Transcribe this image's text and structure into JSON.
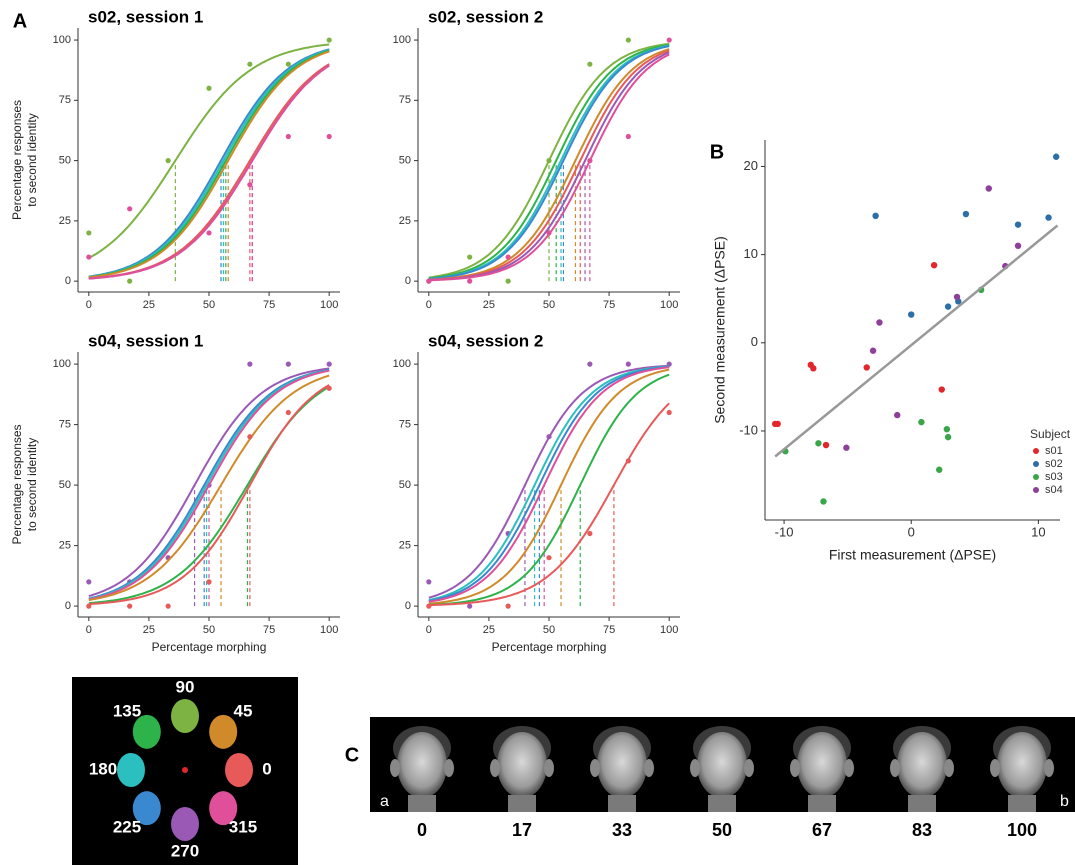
{
  "panel_labels": [
    "A",
    "B",
    "C"
  ],
  "chart_data": [
    {
      "type": "line",
      "title": "s02, session 1",
      "ylabel": [
        "Percentage responses",
        "to second identity"
      ],
      "xlim": [
        -4.5,
        104.5
      ],
      "ylim": [
        -4.5,
        105
      ],
      "xticks": [
        0,
        25,
        50,
        75,
        100
      ],
      "yticks": [
        0,
        25,
        50,
        75,
        100
      ],
      "x": [
        0,
        17,
        33,
        50,
        67,
        83,
        100
      ],
      "series": [
        {
          "color": "#7cb342",
          "pse": 36,
          "slope": 16,
          "values": [
            20,
            0,
            50,
            80,
            90,
            90,
            100
          ]
        },
        {
          "color": "#3a88d0",
          "pse": 55,
          "slope": 14
        },
        {
          "color": "#2bbfbf",
          "pse": 56,
          "slope": 14
        },
        {
          "color": "#2db34a",
          "pse": 57,
          "slope": 14
        },
        {
          "color": "#d08a2a",
          "pse": 58,
          "slope": 14
        },
        {
          "color": "#e85a5a",
          "pse": 67,
          "slope": 15
        },
        {
          "color": "#9b59b6",
          "pse": 68,
          "slope": 15
        },
        {
          "color": "#e0509a",
          "pse": 68,
          "slope": 15,
          "values": [
            10,
            30,
            null,
            20,
            40,
            60,
            60
          ]
        }
      ]
    },
    {
      "type": "line",
      "title": "s02, session 2",
      "xlim": [
        -4.5,
        104.5
      ],
      "ylim": [
        -4.5,
        105
      ],
      "xticks": [
        0,
        25,
        50,
        75,
        100
      ],
      "yticks": [
        0,
        25,
        50,
        75,
        100
      ],
      "x": [
        0,
        17,
        33,
        50,
        67,
        83,
        100
      ],
      "series": [
        {
          "color": "#7cb342",
          "pse": 50,
          "slope": 12,
          "values": [
            0,
            10,
            0,
            50,
            90,
            100,
            null
          ]
        },
        {
          "color": "#2db34a",
          "pse": 53,
          "slope": 12
        },
        {
          "color": "#2bbfbf",
          "pse": 55,
          "slope": 12
        },
        {
          "color": "#3a88d0",
          "pse": 56,
          "slope": 12
        },
        {
          "color": "#d08a2a",
          "pse": 61,
          "slope": 12
        },
        {
          "color": "#e85a5a",
          "pse": 63,
          "slope": 12
        },
        {
          "color": "#9b59b6",
          "pse": 65,
          "slope": 12
        },
        {
          "color": "#e0509a",
          "pse": 67,
          "slope": 12,
          "values": [
            0,
            0,
            10,
            20,
            50,
            60,
            100
          ]
        }
      ]
    },
    {
      "type": "line",
      "title": "s04, session 1",
      "ylabel": [
        "Percentage responses",
        "to second identity"
      ],
      "xlabel": "Percentage morphing",
      "xlim": [
        -4.5,
        104.5
      ],
      "ylim": [
        -4.5,
        105
      ],
      "xticks": [
        0,
        25,
        50,
        75,
        100
      ],
      "yticks": [
        0,
        25,
        50,
        75,
        100
      ],
      "x": [
        0,
        17,
        33,
        50,
        67,
        83,
        100
      ],
      "series": [
        {
          "color": "#9b59b6",
          "pse": 44,
          "slope": 14,
          "values": [
            10,
            10,
            20,
            50,
            100,
            100,
            100
          ]
        },
        {
          "color": "#3a88d0",
          "pse": 48,
          "slope": 14
        },
        {
          "color": "#2bbfbf",
          "pse": 49,
          "slope": 14
        },
        {
          "color": "#e0509a",
          "pse": 50,
          "slope": 14
        },
        {
          "color": "#d08a2a",
          "pse": 55,
          "slope": 15
        },
        {
          "color": "#2db34a",
          "pse": 66,
          "slope": 15
        },
        {
          "color": "#e85a5a",
          "pse": 67,
          "slope": 14,
          "values": [
            0,
            0,
            0,
            10,
            70,
            80,
            90
          ]
        }
      ]
    },
    {
      "type": "line",
      "title": "s04, session 2",
      "xlabel": "Percentage morphing",
      "xlim": [
        -4.5,
        104.5
      ],
      "ylim": [
        -4.5,
        105
      ],
      "xticks": [
        0,
        25,
        50,
        75,
        100
      ],
      "yticks": [
        0,
        25,
        50,
        75,
        100
      ],
      "x": [
        0,
        17,
        33,
        50,
        67,
        83,
        100
      ],
      "series": [
        {
          "color": "#9b59b6",
          "pse": 40,
          "slope": 12,
          "values": [
            10,
            0,
            30,
            70,
            100,
            100,
            100
          ]
        },
        {
          "color": "#2bbfbf",
          "pse": 44,
          "slope": 12
        },
        {
          "color": "#3a88d0",
          "pse": 46,
          "slope": 12
        },
        {
          "color": "#e0509a",
          "pse": 48,
          "slope": 12
        },
        {
          "color": "#d08a2a",
          "pse": 55,
          "slope": 12
        },
        {
          "color": "#2db34a",
          "pse": 63,
          "slope": 12
        },
        {
          "color": "#e85a5a",
          "pse": 77,
          "slope": 14,
          "values": [
            0,
            null,
            0,
            20,
            30,
            60,
            80
          ]
        }
      ]
    },
    {
      "type": "scatter",
      "xlabel": "First measurement (ΔPSE)",
      "ylabel": "Second measurement (ΔPSE)",
      "legend_title": "Subject",
      "xlim": [
        -11.5,
        11.7
      ],
      "ylim": [
        -20.1,
        23
      ],
      "xticks": [
        -10,
        0,
        10
      ],
      "yticks": [
        -10,
        0,
        10,
        20
      ],
      "fit": {
        "color": "#999999",
        "x": [
          -10.7,
          11.5
        ],
        "y": [
          -12.9,
          13.3
        ]
      },
      "series": [
        {
          "name": "s01",
          "color": "#e3262b",
          "x": [
            -10.7,
            -10.5,
            -7.9,
            -7.7,
            -6.7,
            -3.5,
            1.8,
            2.4
          ],
          "y": [
            -9.2,
            -9.2,
            -2.5,
            -2.9,
            -11.6,
            -2.8,
            8.8,
            -5.3
          ]
        },
        {
          "name": "s02",
          "color": "#2b6ea8",
          "x": [
            -2.8,
            0,
            2.9,
            3.7,
            4.3,
            8.4,
            10.8,
            11.4
          ],
          "y": [
            14.4,
            3.2,
            4.1,
            4.7,
            14.6,
            13.4,
            14.2,
            21.1
          ]
        },
        {
          "name": "s03",
          "color": "#3aa64a",
          "x": [
            -9.9,
            -7.3,
            -6.9,
            0.8,
            2.2,
            2.8,
            2.9,
            5.5
          ],
          "y": [
            -12.3,
            -11.4,
            -18,
            -9,
            -14.4,
            -9.8,
            -10.7,
            6
          ]
        },
        {
          "name": "s04",
          "color": "#8e3f9a",
          "x": [
            -3,
            -2.5,
            -1.1,
            -5.1,
            3.6,
            6.1,
            7.4,
            8.4
          ],
          "y": [
            -0.9,
            2.3,
            -8.2,
            -11.9,
            5.2,
            17.5,
            8.7,
            11
          ]
        }
      ]
    }
  ],
  "color_wheel": {
    "labels": [
      0,
      45,
      90,
      135,
      180,
      225,
      270,
      315
    ],
    "colors": [
      "#e85a5a",
      "#d08a2a",
      "#7cb342",
      "#2db34a",
      "#2bbfbf",
      "#3a88d0",
      "#9b59b6",
      "#e0509a"
    ]
  },
  "morph_strip": {
    "labels": [
      0,
      17,
      33,
      50,
      67,
      83,
      100
    ],
    "end_labels": [
      "a",
      "b"
    ]
  }
}
